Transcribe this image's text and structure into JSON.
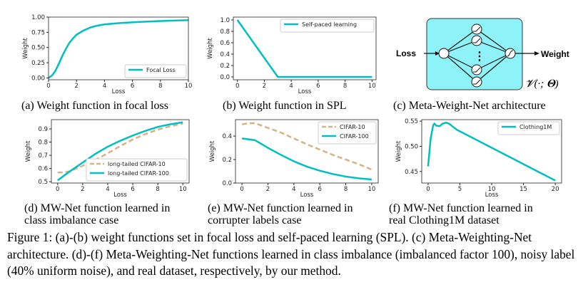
{
  "colors": {
    "teal": "#00bfc0",
    "tan": "#d4b483",
    "box": "#8ef3f8"
  },
  "chart_data": [
    {
      "type": "line",
      "xlabel": "Loss",
      "ylabel": "Weight",
      "xlim": [
        0,
        10
      ],
      "ylim": [
        -0.03,
        1.0
      ],
      "xticks": [
        0,
        2,
        4,
        6,
        8,
        10
      ],
      "yticks": [
        0,
        0.25,
        0.5,
        0.75,
        1.0
      ],
      "ytick_labels": [
        "0.00",
        "0.25",
        "0.50",
        "0.75",
        "1.00"
      ],
      "legend": "bottom-right",
      "series": [
        {
          "name": "Focal Loss",
          "style": "solid",
          "color": "#00bfc0",
          "x": [
            0,
            0.25,
            0.5,
            0.75,
            1,
            1.25,
            1.5,
            1.75,
            2,
            2.5,
            3,
            3.5,
            4,
            5,
            6,
            7,
            8,
            9,
            10
          ],
          "y": [
            0,
            0.04,
            0.12,
            0.24,
            0.37,
            0.48,
            0.58,
            0.65,
            0.71,
            0.78,
            0.83,
            0.86,
            0.88,
            0.9,
            0.915,
            0.925,
            0.935,
            0.943,
            0.95
          ]
        }
      ]
    },
    {
      "type": "line",
      "xlabel": "Loss",
      "ylabel": "Weight",
      "xlim": [
        -0.3,
        10.3
      ],
      "ylim": [
        -0.05,
        1.05
      ],
      "xticks": [
        0,
        2,
        4,
        6,
        8,
        10
      ],
      "yticks": [
        0,
        0.2,
        0.4,
        0.6,
        0.8,
        1.0
      ],
      "ytick_labels": [
        "0.0",
        "0.2",
        "0.4",
        "0.6",
        "0.8",
        "1.0"
      ],
      "legend": "top-right",
      "series": [
        {
          "name": "Self-paced learning",
          "style": "solid",
          "color": "#00bfc0",
          "x": [
            0,
            3,
            10
          ],
          "y": [
            1,
            0,
            0
          ]
        }
      ]
    },
    {
      "type": "line",
      "xlabel": "Loss",
      "ylabel": "Weight",
      "xlim": [
        -0.5,
        10.5
      ],
      "ylim": [
        0.49,
        0.97
      ],
      "xticks": [
        0,
        2,
        4,
        6,
        8,
        10
      ],
      "yticks": [
        0.5,
        0.6,
        0.7,
        0.8,
        0.9
      ],
      "ytick_labels": [
        "0.5",
        "0.6",
        "0.7",
        "0.8",
        "0.9"
      ],
      "legend": "bottom-right",
      "series": [
        {
          "name": "long-tailed CIFAR-10",
          "style": "dashed",
          "color": "#d4b483",
          "x": [
            0,
            0.5,
            1,
            2,
            3,
            4,
            5,
            6,
            7,
            8,
            9,
            10
          ],
          "y": [
            0.57,
            0.57,
            0.58,
            0.62,
            0.665,
            0.715,
            0.77,
            0.82,
            0.86,
            0.895,
            0.92,
            0.94
          ]
        },
        {
          "name": "long-tailed CIFAR-100",
          "style": "solid",
          "color": "#00bfc0",
          "x": [
            0,
            1,
            2,
            3,
            4,
            5,
            6,
            7,
            8,
            9,
            10
          ],
          "y": [
            0.51,
            0.58,
            0.645,
            0.71,
            0.765,
            0.81,
            0.85,
            0.885,
            0.915,
            0.935,
            0.95
          ]
        }
      ]
    },
    {
      "type": "line",
      "xlabel": "Loss",
      "ylabel": "Weight",
      "xlim": [
        -0.5,
        10.5
      ],
      "ylim": [
        0,
        0.54
      ],
      "xticks": [
        0,
        2,
        4,
        6,
        8,
        10
      ],
      "yticks": [
        0,
        0.2,
        0.4
      ],
      "ytick_labels": [
        "0.0",
        "0.2",
        "0.4"
      ],
      "legend": "top-right",
      "series": [
        {
          "name": "CIFAR-10",
          "style": "dashed",
          "color": "#d4b483",
          "x": [
            0,
            0.5,
            1,
            2,
            3,
            4,
            5,
            6,
            7,
            8,
            9,
            10
          ],
          "y": [
            0.5,
            0.51,
            0.51,
            0.47,
            0.43,
            0.38,
            0.33,
            0.285,
            0.24,
            0.2,
            0.16,
            0.115
          ]
        },
        {
          "name": "CIFAR-100",
          "style": "solid",
          "color": "#00bfc0",
          "x": [
            0,
            1,
            2,
            3,
            4,
            5,
            6,
            7,
            8,
            9,
            10
          ],
          "y": [
            0.38,
            0.365,
            0.3,
            0.24,
            0.185,
            0.14,
            0.105,
            0.077,
            0.055,
            0.04,
            0.03
          ]
        }
      ]
    },
    {
      "type": "line",
      "xlabel": "Loss",
      "ylabel": "Weight",
      "xlim": [
        -1,
        21
      ],
      "ylim": [
        0.427,
        0.553
      ],
      "xticks": [
        0,
        5,
        10,
        15,
        20
      ],
      "yticks": [
        0.45,
        0.5,
        0.55
      ],
      "ytick_labels": [
        "0.45",
        "0.50",
        "0.55"
      ],
      "legend": "top-right",
      "series": [
        {
          "name": "Clothing1M",
          "style": "solid",
          "color": "#00bfc0",
          "x": [
            0,
            0.4,
            0.8,
            1,
            1.3,
            1.8,
            2.3,
            2.8,
            3.3,
            3.8,
            4.5,
            20
          ],
          "y": [
            0.46,
            0.515,
            0.542,
            0.545,
            0.541,
            0.54,
            0.545,
            0.547,
            0.545,
            0.54,
            0.533,
            0.432
          ]
        }
      ]
    }
  ],
  "diagram": {
    "input": "Loss",
    "output": "Weight",
    "formula": "𝓥(·; 𝚯)",
    "dots": "⋮"
  },
  "captions": {
    "a": "(a)  Weight function in focal loss",
    "b": "(b)  Weight function in SPL",
    "c": "(c)  Meta-Weight-Net architecture",
    "d1": "(d)  MW-Net function learned in",
    "d2": "class imbalance case",
    "e1": "(e)  MW-Net function learned in",
    "e2": "corrupter labels case",
    "f1": "(f)  MW-Net function learned in",
    "f2": "real Clothing1M dataset"
  },
  "figure_caption": "Figure 1: (a)-(b) weight functions set in focal loss and self-paced learning (SPL). (c) Meta-Weighting-Net architecture. (d)-(f) Meta-Weighting-Net functions learned in class imbalance (imbalanced factor 100), noisy label (40% uniform noise), and real dataset, respectively, by our method."
}
